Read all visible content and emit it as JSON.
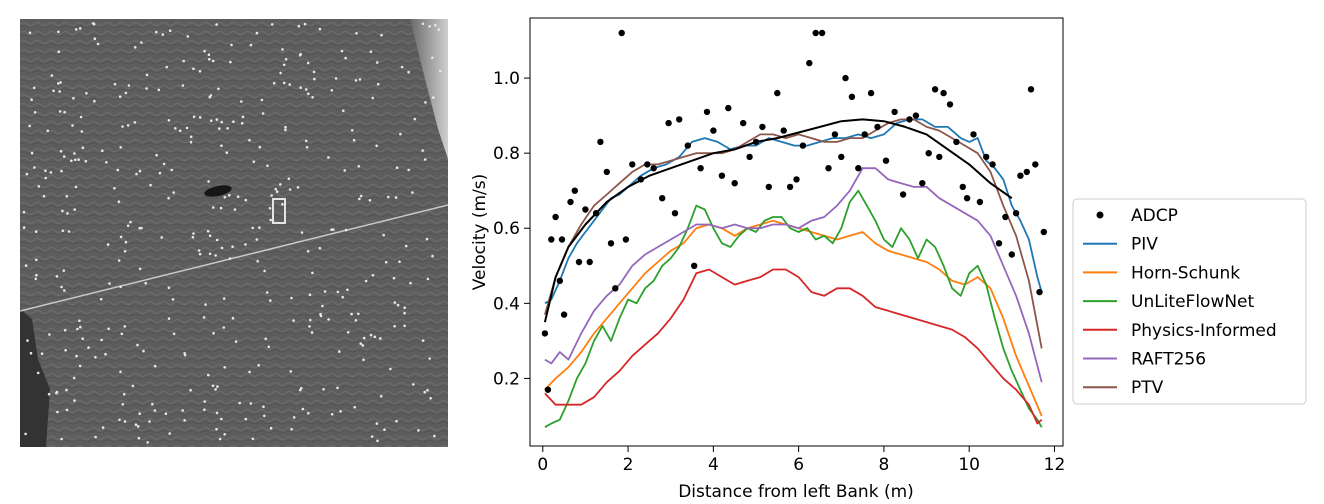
{
  "photo": {
    "description_icon": "river-surface-photo"
  },
  "chart_data": {
    "type": "line",
    "title": "",
    "xlabel": "Distance from left Bank (m)",
    "ylabel": "Velocity (m/s)",
    "xlim": [
      -0.3,
      12.2
    ],
    "ylim": [
      0.02,
      1.16
    ],
    "xticks": [
      0,
      2,
      4,
      6,
      8,
      10,
      12
    ],
    "yticks": [
      0.2,
      0.4,
      0.6,
      0.8,
      1.0
    ],
    "xtick_labels": [
      "0",
      "2",
      "4",
      "6",
      "8",
      "10",
      "12"
    ],
    "ytick_labels": [
      "0.2",
      "0.4",
      "0.6",
      "0.8",
      "1.0"
    ],
    "grid": false,
    "legend_position": "right",
    "adcp": {
      "name": "ADCP",
      "color": "#000000",
      "points": [
        [
          0.05,
          0.32
        ],
        [
          0.12,
          0.17
        ],
        [
          0.2,
          0.57
        ],
        [
          0.3,
          0.63
        ],
        [
          0.4,
          0.46
        ],
        [
          0.45,
          0.57
        ],
        [
          0.5,
          0.37
        ],
        [
          0.65,
          0.67
        ],
        [
          0.75,
          0.7
        ],
        [
          0.85,
          0.51
        ],
        [
          1.0,
          0.65
        ],
        [
          1.1,
          0.51
        ],
        [
          1.25,
          0.64
        ],
        [
          1.35,
          0.83
        ],
        [
          1.5,
          0.75
        ],
        [
          1.6,
          0.56
        ],
        [
          1.7,
          0.44
        ],
        [
          1.85,
          1.12
        ],
        [
          1.95,
          0.57
        ],
        [
          2.1,
          0.77
        ],
        [
          2.3,
          0.73
        ],
        [
          2.45,
          0.77
        ],
        [
          2.6,
          0.76
        ],
        [
          2.8,
          0.68
        ],
        [
          2.95,
          0.88
        ],
        [
          3.1,
          0.64
        ],
        [
          3.2,
          0.89
        ],
        [
          3.4,
          0.82
        ],
        [
          3.55,
          0.5
        ],
        [
          3.7,
          0.76
        ],
        [
          3.85,
          0.91
        ],
        [
          4.0,
          0.86
        ],
        [
          4.2,
          0.74
        ],
        [
          4.35,
          0.92
        ],
        [
          4.5,
          0.72
        ],
        [
          4.7,
          0.88
        ],
        [
          4.85,
          0.79
        ],
        [
          5.0,
          0.83
        ],
        [
          5.15,
          0.87
        ],
        [
          5.3,
          0.71
        ],
        [
          5.5,
          0.96
        ],
        [
          5.65,
          0.86
        ],
        [
          5.8,
          0.71
        ],
        [
          5.95,
          0.73
        ],
        [
          6.1,
          0.82
        ],
        [
          6.25,
          1.04
        ],
        [
          6.4,
          1.12
        ],
        [
          6.55,
          1.12
        ],
        [
          6.7,
          0.76
        ],
        [
          6.85,
          0.85
        ],
        [
          7.0,
          0.79
        ],
        [
          7.1,
          1.0
        ],
        [
          7.25,
          0.95
        ],
        [
          7.4,
          0.76
        ],
        [
          7.55,
          0.85
        ],
        [
          7.7,
          0.96
        ],
        [
          7.85,
          0.87
        ],
        [
          8.05,
          0.78
        ],
        [
          8.25,
          0.91
        ],
        [
          8.45,
          0.69
        ],
        [
          8.6,
          0.89
        ],
        [
          8.75,
          0.9
        ],
        [
          8.9,
          0.72
        ],
        [
          9.05,
          0.8
        ],
        [
          9.2,
          0.97
        ],
        [
          9.3,
          0.79
        ],
        [
          9.4,
          0.96
        ],
        [
          9.55,
          0.93
        ],
        [
          9.7,
          0.83
        ],
        [
          9.85,
          0.71
        ],
        [
          9.95,
          0.68
        ],
        [
          10.1,
          0.85
        ],
        [
          10.25,
          0.67
        ],
        [
          10.4,
          0.79
        ],
        [
          10.55,
          0.77
        ],
        [
          10.7,
          0.56
        ],
        [
          10.85,
          0.63
        ],
        [
          11.0,
          0.53
        ],
        [
          11.1,
          0.64
        ],
        [
          11.2,
          0.74
        ],
        [
          11.35,
          0.75
        ],
        [
          11.45,
          0.97
        ],
        [
          11.55,
          0.77
        ],
        [
          11.65,
          0.43
        ],
        [
          11.75,
          0.59
        ]
      ]
    },
    "fit_curve": {
      "color": "#000000",
      "x": [
        0.05,
        0.3,
        0.6,
        1.0,
        1.5,
        2.0,
        2.5,
        3.0,
        3.5,
        4.0,
        4.5,
        5.0,
        5.5,
        6.0,
        6.5,
        7.0,
        7.5,
        8.0,
        8.5,
        9.0,
        9.5,
        10.0,
        10.5,
        11.0
      ],
      "y": [
        0.35,
        0.47,
        0.55,
        0.61,
        0.67,
        0.71,
        0.74,
        0.76,
        0.78,
        0.8,
        0.81,
        0.83,
        0.84,
        0.855,
        0.87,
        0.885,
        0.89,
        0.885,
        0.87,
        0.85,
        0.81,
        0.77,
        0.72,
        0.68
      ]
    },
    "series": [
      {
        "name": "PIV",
        "color": "#1f77b4",
        "x": [
          0.05,
          0.2,
          0.4,
          0.6,
          0.8,
          1.0,
          1.2,
          1.4,
          1.6,
          1.8,
          2.0,
          2.3,
          2.6,
          2.9,
          3.2,
          3.5,
          3.8,
          4.1,
          4.4,
          4.7,
          5.0,
          5.3,
          5.6,
          5.9,
          6.2,
          6.5,
          6.8,
          7.1,
          7.4,
          7.7,
          8.0,
          8.3,
          8.6,
          8.9,
          9.2,
          9.5,
          9.8,
          10.0,
          10.2,
          10.4,
          10.6,
          10.8,
          11.0,
          11.2,
          11.4,
          11.6,
          11.7
        ],
        "y": [
          0.4,
          0.41,
          0.46,
          0.52,
          0.56,
          0.59,
          0.62,
          0.65,
          0.68,
          0.69,
          0.71,
          0.74,
          0.76,
          0.77,
          0.79,
          0.83,
          0.84,
          0.83,
          0.81,
          0.82,
          0.82,
          0.84,
          0.83,
          0.82,
          0.82,
          0.83,
          0.84,
          0.84,
          0.85,
          0.84,
          0.85,
          0.88,
          0.89,
          0.89,
          0.87,
          0.87,
          0.84,
          0.83,
          0.84,
          0.78,
          0.76,
          0.73,
          0.66,
          0.62,
          0.57,
          0.47,
          0.43
        ]
      },
      {
        "name": "Horn-Schunk",
        "color": "#ff7f0e",
        "x": [
          0.05,
          0.3,
          0.6,
          0.9,
          1.2,
          1.5,
          1.8,
          2.1,
          2.4,
          2.7,
          3.0,
          3.3,
          3.6,
          3.9,
          4.2,
          4.5,
          4.8,
          5.1,
          5.4,
          5.7,
          6.0,
          6.3,
          6.6,
          6.9,
          7.2,
          7.5,
          7.8,
          8.1,
          8.4,
          8.7,
          9.0,
          9.3,
          9.6,
          9.9,
          10.2,
          10.5,
          10.8,
          11.1,
          11.4,
          11.7
        ],
        "y": [
          0.17,
          0.2,
          0.23,
          0.27,
          0.32,
          0.36,
          0.4,
          0.44,
          0.48,
          0.51,
          0.54,
          0.56,
          0.6,
          0.61,
          0.6,
          0.58,
          0.6,
          0.61,
          0.62,
          0.61,
          0.6,
          0.59,
          0.58,
          0.57,
          0.58,
          0.59,
          0.56,
          0.54,
          0.53,
          0.52,
          0.51,
          0.49,
          0.46,
          0.45,
          0.47,
          0.44,
          0.36,
          0.26,
          0.18,
          0.1
        ]
      },
      {
        "name": "UnLiteFlowNet",
        "color": "#2ca02c",
        "x": [
          0.05,
          0.2,
          0.4,
          0.6,
          0.8,
          1.0,
          1.2,
          1.4,
          1.6,
          1.8,
          2.0,
          2.2,
          2.4,
          2.6,
          2.8,
          3.0,
          3.2,
          3.4,
          3.6,
          3.8,
          4.0,
          4.2,
          4.4,
          4.6,
          4.8,
          5.0,
          5.2,
          5.4,
          5.6,
          5.8,
          6.0,
          6.2,
          6.4,
          6.6,
          6.8,
          7.0,
          7.2,
          7.4,
          7.6,
          7.8,
          8.0,
          8.2,
          8.4,
          8.6,
          8.8,
          9.0,
          9.2,
          9.4,
          9.6,
          9.8,
          10.0,
          10.2,
          10.4,
          10.6,
          10.8,
          11.0,
          11.2,
          11.4,
          11.6,
          11.7
        ],
        "y": [
          0.07,
          0.08,
          0.09,
          0.14,
          0.2,
          0.24,
          0.3,
          0.34,
          0.3,
          0.36,
          0.41,
          0.4,
          0.44,
          0.46,
          0.5,
          0.52,
          0.55,
          0.6,
          0.66,
          0.65,
          0.6,
          0.56,
          0.55,
          0.58,
          0.6,
          0.59,
          0.62,
          0.63,
          0.63,
          0.6,
          0.59,
          0.6,
          0.57,
          0.58,
          0.56,
          0.6,
          0.67,
          0.7,
          0.66,
          0.62,
          0.57,
          0.55,
          0.6,
          0.57,
          0.52,
          0.57,
          0.55,
          0.5,
          0.44,
          0.42,
          0.48,
          0.5,
          0.45,
          0.36,
          0.28,
          0.22,
          0.17,
          0.12,
          0.09,
          0.07
        ]
      },
      {
        "name": "Physics-Informed",
        "color": "#d62728",
        "x": [
          0.05,
          0.3,
          0.6,
          0.9,
          1.2,
          1.5,
          1.8,
          2.1,
          2.4,
          2.7,
          3.0,
          3.3,
          3.6,
          3.9,
          4.2,
          4.5,
          4.8,
          5.1,
          5.4,
          5.7,
          6.0,
          6.3,
          6.6,
          6.9,
          7.2,
          7.5,
          7.8,
          8.1,
          8.4,
          8.7,
          9.0,
          9.3,
          9.6,
          9.9,
          10.2,
          10.5,
          10.8,
          11.1,
          11.4,
          11.6,
          11.7
        ],
        "y": [
          0.16,
          0.13,
          0.13,
          0.13,
          0.15,
          0.19,
          0.22,
          0.26,
          0.29,
          0.32,
          0.36,
          0.41,
          0.48,
          0.49,
          0.47,
          0.45,
          0.46,
          0.47,
          0.49,
          0.49,
          0.47,
          0.43,
          0.42,
          0.44,
          0.44,
          0.42,
          0.39,
          0.38,
          0.37,
          0.36,
          0.35,
          0.34,
          0.33,
          0.31,
          0.28,
          0.24,
          0.2,
          0.17,
          0.13,
          0.08,
          0.09
        ]
      },
      {
        "name": "RAFT256",
        "color": "#9467bd",
        "x": [
          0.05,
          0.2,
          0.4,
          0.6,
          0.9,
          1.2,
          1.5,
          1.8,
          2.1,
          2.4,
          2.7,
          3.0,
          3.3,
          3.6,
          3.9,
          4.2,
          4.5,
          4.8,
          5.1,
          5.4,
          5.7,
          6.0,
          6.3,
          6.6,
          6.9,
          7.2,
          7.5,
          7.8,
          8.1,
          8.4,
          8.7,
          9.0,
          9.3,
          9.6,
          9.9,
          10.2,
          10.5,
          10.8,
          11.1,
          11.4,
          11.7
        ],
        "y": [
          0.25,
          0.24,
          0.27,
          0.25,
          0.32,
          0.38,
          0.42,
          0.45,
          0.5,
          0.53,
          0.55,
          0.57,
          0.59,
          0.61,
          0.61,
          0.6,
          0.61,
          0.6,
          0.6,
          0.61,
          0.61,
          0.6,
          0.62,
          0.63,
          0.66,
          0.7,
          0.76,
          0.76,
          0.73,
          0.72,
          0.71,
          0.71,
          0.68,
          0.66,
          0.64,
          0.62,
          0.58,
          0.5,
          0.42,
          0.32,
          0.19
        ]
      },
      {
        "name": "PTV",
        "color": "#8c564b",
        "x": [
          0.05,
          0.3,
          0.6,
          0.9,
          1.2,
          1.5,
          1.8,
          2.1,
          2.4,
          2.7,
          3.0,
          3.3,
          3.6,
          3.9,
          4.2,
          4.5,
          4.8,
          5.1,
          5.4,
          5.7,
          6.0,
          6.3,
          6.6,
          6.9,
          7.2,
          7.5,
          7.8,
          8.1,
          8.4,
          8.7,
          9.0,
          9.3,
          9.6,
          9.9,
          10.2,
          10.5,
          10.8,
          11.1,
          11.4,
          11.7
        ],
        "y": [
          0.37,
          0.47,
          0.55,
          0.61,
          0.66,
          0.69,
          0.72,
          0.75,
          0.77,
          0.77,
          0.78,
          0.79,
          0.8,
          0.8,
          0.8,
          0.81,
          0.83,
          0.85,
          0.85,
          0.84,
          0.85,
          0.84,
          0.83,
          0.83,
          0.84,
          0.84,
          0.86,
          0.88,
          0.89,
          0.89,
          0.87,
          0.86,
          0.84,
          0.82,
          0.8,
          0.75,
          0.66,
          0.58,
          0.46,
          0.28
        ]
      }
    ]
  }
}
